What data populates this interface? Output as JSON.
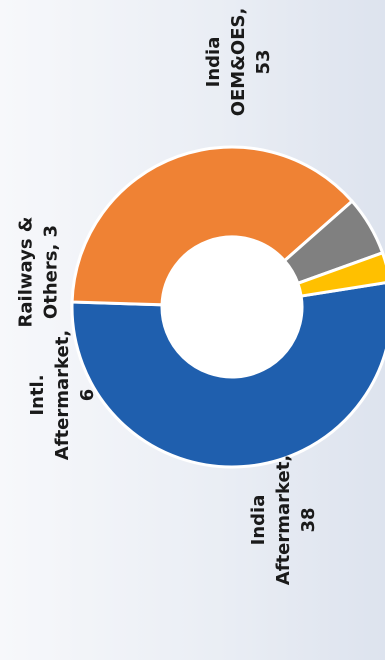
{
  "chart_data": {
    "type": "pie",
    "style": "donut",
    "orientation": "rotated-90-ccw",
    "series": [
      {
        "label_lines": [
          "India",
          "OEM&OES,",
          "53"
        ],
        "category": "India OEM&OES",
        "value": 53,
        "color": "#1f5fae"
      },
      {
        "label_lines": [
          "India",
          "Aftermarket,",
          "38"
        ],
        "category": "India Aftermarket",
        "value": 38,
        "color": "#ef8234"
      },
      {
        "label_lines": [
          "Intl.",
          "Aftermarket,",
          "6"
        ],
        "category": "Intl. Aftermarket",
        "value": 6,
        "color": "#808080"
      },
      {
        "label_lines": [
          "Railways &",
          "Others,  3"
        ],
        "category": "Railways & Others",
        "value": 3,
        "color": "#ffc000"
      }
    ]
  }
}
